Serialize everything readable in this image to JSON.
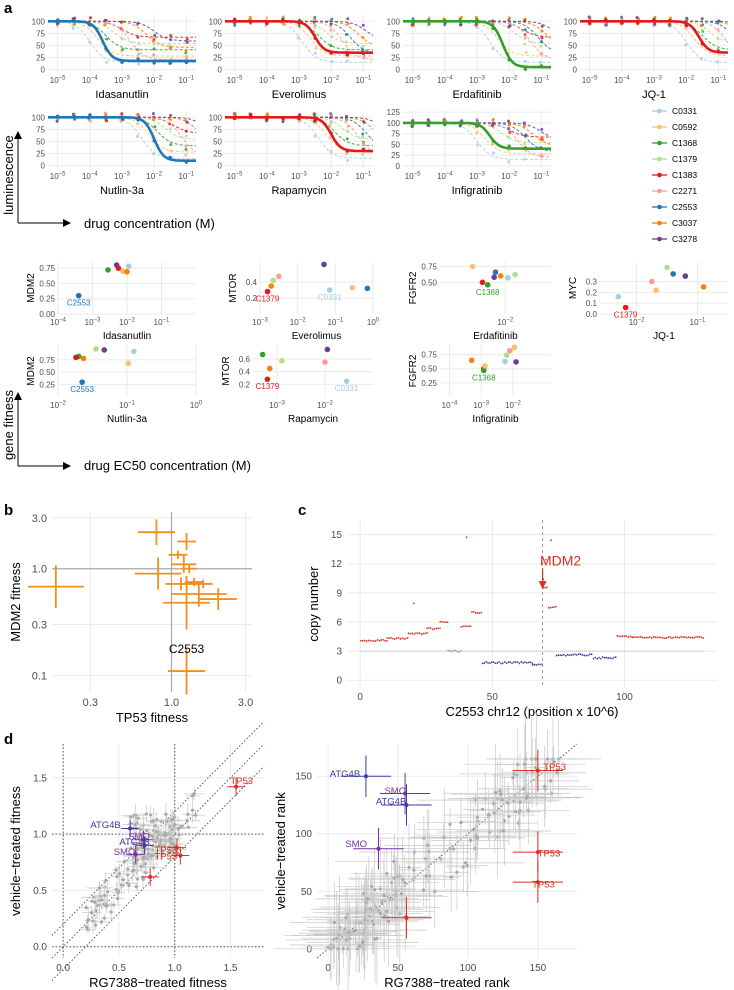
{
  "panel_labels": {
    "a": "a",
    "b": "b",
    "c": "c",
    "d": "d"
  },
  "colors": {
    "C0331": "#a6cee3",
    "C0592": "#fdbf6f",
    "C1368": "#33a02c",
    "C1379": "#b2df8a",
    "C1383": "#e31a1c",
    "C2271": "#fb9a99",
    "C2553": "#1f78b4",
    "C3037": "#ff7f00",
    "C3278": "#6a3d9a",
    "grid": "#ebebeb",
    "axis": "#4d4d4d",
    "orange": "#f28e1c",
    "grey": "#bdbdbd",
    "blue": "#3a3a9f",
    "purple": "#7b2fa3",
    "red": "#d7301f"
  },
  "legend": {
    "entries": [
      "C0331",
      "C0592",
      "C1368",
      "C1379",
      "C1383",
      "C2271",
      "C2553",
      "C3037",
      "C3278"
    ]
  },
  "panel_a": {
    "y_axis_label_top": "luminescence",
    "x_axis_label_top": "drug concentration (M)",
    "y_axis_label_bottom": "gene fitness",
    "x_axis_label_bottom": "drug EC50 concentration (M)",
    "dose_x_ticks": [
      "10^-5",
      "10^-4",
      "10^-3",
      "10^-2",
      "10^-1"
    ],
    "dose_panels": [
      {
        "drug": "Idasanutlin",
        "y_ticks": [
          "0",
          "25",
          "50",
          "75",
          "100"
        ],
        "ymax": 110,
        "highlight": "C2553",
        "ec50_log": -3.6,
        "bottom": 18
      },
      {
        "drug": "Everolimus",
        "y_ticks": [
          "0",
          "25",
          "50",
          "75",
          "100"
        ],
        "ymax": 110,
        "highlight": "C1383",
        "ec50_log": -2.5,
        "bottom": 35
      },
      {
        "drug": "Erdafitinib",
        "y_ticks": [
          "0",
          "25",
          "50",
          "75",
          "100"
        ],
        "ymax": 110,
        "highlight": "C1368",
        "ec50_log": -2.2,
        "bottom": 5
      },
      {
        "drug": "JQ-1",
        "y_ticks": [
          "0",
          "25",
          "50",
          "75",
          "100"
        ],
        "ymax": 110,
        "highlight": "C1383",
        "ec50_log": -1.6,
        "bottom": 35
      },
      {
        "drug": "Nutlin-3a",
        "y_ticks": [
          "0",
          "25",
          "50",
          "75",
          "100"
        ],
        "ymax": 110,
        "highlight": "C2553",
        "ec50_log": -2.0,
        "bottom": 10
      },
      {
        "drug": "Rapamycin",
        "y_ticks": [
          "0",
          "25",
          "50",
          "75",
          "100"
        ],
        "ymax": 110,
        "highlight": "C1383",
        "ec50_log": -2.0,
        "bottom": 30
      },
      {
        "drug": "Infigratinib",
        "y_ticks": [
          "0",
          "25",
          "50",
          "75",
          "100",
          "125"
        ],
        "ymax": 125,
        "highlight": "C1368",
        "ec50_log": -2.6,
        "bottom": 40
      }
    ],
    "ec50_panels": [
      {
        "drug": "Idasanutlin",
        "gene": "MDM2",
        "xmin": -4,
        "xmax": 0,
        "ymax": 0.85,
        "x_ticks": [
          "10^-4",
          "10^-3",
          "10^-2",
          "10^-1"
        ],
        "y_ticks": [
          "0.00",
          "0.25",
          "0.50",
          "0.75"
        ],
        "label": "C2553",
        "label_color": "C2553",
        "points": [
          {
            "c": "C2553",
            "x": -3.4,
            "y": 0.3
          },
          {
            "c": "C1368",
            "x": -2.55,
            "y": 0.72
          },
          {
            "c": "C3278",
            "x": -2.3,
            "y": 0.8
          },
          {
            "c": "C1383",
            "x": -2.25,
            "y": 0.75
          },
          {
            "c": "C0592",
            "x": -2.12,
            "y": 0.7
          },
          {
            "c": "C3037",
            "x": -2.0,
            "y": 0.69
          },
          {
            "c": "C0331",
            "x": -1.95,
            "y": 0.78
          }
        ]
      },
      {
        "drug": "Everolimus",
        "gene": "MTOR",
        "xmin": -3,
        "xmax": 0,
        "ymax": 0.65,
        "x_ticks": [
          "10^-3",
          "10^-2",
          "10^-1",
          "10^0"
        ],
        "y_ticks": [
          "0.2",
          "0.4"
        ],
        "label": "C1379",
        "label_color": "C1383",
        "label2": "C0331",
        "label2_color": "C0331",
        "points": [
          {
            "c": "C1383",
            "x": -2.8,
            "y": 0.28
          },
          {
            "c": "C3037",
            "x": -2.7,
            "y": 0.35
          },
          {
            "c": "C1379",
            "x": -2.65,
            "y": 0.42
          },
          {
            "c": "C2271",
            "x": -2.5,
            "y": 0.47
          },
          {
            "c": "C3278",
            "x": -1.3,
            "y": 0.62
          },
          {
            "c": "C0331",
            "x": -1.15,
            "y": 0.3
          },
          {
            "c": "C0592",
            "x": -0.55,
            "y": 0.33
          },
          {
            "c": "C2553",
            "x": -0.15,
            "y": 0.32
          }
        ]
      },
      {
        "drug": "Erdafitinib",
        "gene": "FGFR2",
        "xmin": -3,
        "xmax": -1.3,
        "ymax": 0.82,
        "x_ticks": [
          "10^-2"
        ],
        "y_ticks": [
          "0.50",
          "0.75"
        ],
        "label": "C1368",
        "label_color": "C1368",
        "points": [
          {
            "c": "C0592",
            "x": -2.5,
            "y": 0.75
          },
          {
            "c": "C1383",
            "x": -2.35,
            "y": 0.5
          },
          {
            "c": "C1368",
            "x": -2.27,
            "y": 0.46
          },
          {
            "c": "C3278",
            "x": -2.17,
            "y": 0.58
          },
          {
            "c": "C2553",
            "x": -2.15,
            "y": 0.66
          },
          {
            "c": "C3037",
            "x": -2.07,
            "y": 0.6
          },
          {
            "c": "C0331",
            "x": -1.96,
            "y": 0.57
          },
          {
            "c": "C1379",
            "x": -1.85,
            "y": 0.62
          }
        ]
      },
      {
        "drug": "JQ-1",
        "gene": "MYC",
        "xmin": -2.6,
        "xmax": -0.5,
        "ymax": 0.48,
        "x_ticks": [
          "10^-2",
          "10^-1"
        ],
        "y_ticks": [
          "0.0",
          "0.1",
          "0.2",
          "0.3"
        ],
        "label": "C1379",
        "label_color": "C1383",
        "points": [
          {
            "c": "C0331",
            "x": -2.3,
            "y": 0.16
          },
          {
            "c": "C1383",
            "x": -2.18,
            "y": 0.06
          },
          {
            "c": "C2271",
            "x": -1.75,
            "y": 0.3
          },
          {
            "c": "C0592",
            "x": -1.68,
            "y": 0.22
          },
          {
            "c": "C1379",
            "x": -1.5,
            "y": 0.43
          },
          {
            "c": "C2553",
            "x": -1.4,
            "y": 0.37
          },
          {
            "c": "C3278",
            "x": -1.2,
            "y": 0.35
          },
          {
            "c": "C3037",
            "x": -0.9,
            "y": 0.25
          }
        ]
      },
      {
        "drug": "Nutlin-3a",
        "gene": "MDM2",
        "xmin": -2,
        "xmax": 0,
        "ymax": 1.05,
        "x_ticks": [
          "10^-2",
          "10^-1",
          "10^0"
        ],
        "y_ticks": [
          "0.25",
          "0.50",
          "0.75"
        ],
        "label": "C2553",
        "label_color": "C2553",
        "points": [
          {
            "c": "C2553",
            "x": -1.65,
            "y": 0.3
          },
          {
            "c": "C1368",
            "x": -1.7,
            "y": 0.82
          },
          {
            "c": "C1383",
            "x": -1.74,
            "y": 0.8
          },
          {
            "c": "C3037",
            "x": -1.63,
            "y": 0.78
          },
          {
            "c": "C1379",
            "x": -1.45,
            "y": 0.97
          },
          {
            "c": "C3278",
            "x": -1.33,
            "y": 0.95
          },
          {
            "c": "C0331",
            "x": -0.9,
            "y": 0.92
          },
          {
            "c": "C0592",
            "x": -0.98,
            "y": 0.68
          }
        ]
      },
      {
        "drug": "Rapamycin",
        "gene": "MTOR",
        "xmin": -3.5,
        "xmax": -1,
        "ymax": 0.82,
        "x_ticks": [
          "10^-3",
          "10^-2"
        ],
        "y_ticks": [
          "0.2",
          "0.4",
          "0.6"
        ],
        "label": "C1379",
        "label_color": "C1383",
        "label2": "C0331",
        "label2_color": "C0331",
        "points": [
          {
            "c": "C1368",
            "x": -3.3,
            "y": 0.67
          },
          {
            "c": "C1383",
            "x": -3.2,
            "y": 0.28
          },
          {
            "c": "C3037",
            "x": -3.15,
            "y": 0.45
          },
          {
            "c": "C1379",
            "x": -2.9,
            "y": 0.57
          },
          {
            "c": "C2271",
            "x": -2.0,
            "y": 0.55
          },
          {
            "c": "C3278",
            "x": -1.95,
            "y": 0.75
          },
          {
            "c": "C0331",
            "x": -1.55,
            "y": 0.25
          }
        ]
      },
      {
        "drug": "Infigratinib",
        "gene": "FGFR2",
        "xmin": -4.3,
        "xmax": -0.8,
        "ymax": 0.92,
        "x_ticks": [
          "10^-4",
          "10^-3",
          "10^-2"
        ],
        "y_ticks": [
          "0.25",
          "0.50",
          "0.75"
        ],
        "label": "C1368",
        "label_color": "C1368",
        "points": [
          {
            "c": "C3037",
            "x": -3.3,
            "y": 0.65
          },
          {
            "c": "C1383",
            "x": -2.92,
            "y": 0.5
          },
          {
            "c": "C1368",
            "x": -2.92,
            "y": 0.47
          },
          {
            "c": "C0592",
            "x": -2.88,
            "y": 0.55
          },
          {
            "c": "C1379",
            "x": -2.2,
            "y": 0.74
          },
          {
            "c": "C2271",
            "x": -2.1,
            "y": 0.82
          },
          {
            "c": "C0592",
            "x": -1.95,
            "y": 0.88
          },
          {
            "c": "C3278",
            "x": -1.9,
            "y": 0.62
          },
          {
            "c": "C0331",
            "x": -2.25,
            "y": 0.63
          }
        ]
      }
    ]
  },
  "panel_b": {
    "xlabel": "TP53 fitness",
    "ylabel": "MDM2 fitness",
    "x_ticks": [
      "0.3",
      "1.0",
      "3.0"
    ],
    "y_ticks": [
      "0.1",
      "0.3",
      "1.0",
      "3.0"
    ],
    "label": "C2553",
    "points": [
      {
        "x": 0.8,
        "y": 2.2,
        "xe": 0.12,
        "ye": 0.12
      },
      {
        "x": 1.25,
        "y": 1.8,
        "xe": 0.06,
        "ye": 0.08
      },
      {
        "x": 0.18,
        "y": 0.68,
        "xe": 0.18,
        "ye": 0.2
      },
      {
        "x": 0.82,
        "y": 0.9,
        "xe": 0.15,
        "ye": 0.15
      },
      {
        "x": 1.2,
        "y": 1.1,
        "xe": 0.08,
        "ye": 0.08
      },
      {
        "x": 1.1,
        "y": 1.35,
        "xe": 0.06,
        "ye": 0.04
      },
      {
        "x": 1.3,
        "y": 1.0,
        "xe": 0.05,
        "ye": 0.04
      },
      {
        "x": 1.15,
        "y": 0.72,
        "xe": 0.1,
        "ye": 0.06
      },
      {
        "x": 1.4,
        "y": 0.75,
        "xe": 0.06,
        "ye": 0.04
      },
      {
        "x": 1.6,
        "y": 0.72,
        "xe": 0.06,
        "ye": 0.04
      },
      {
        "x": 1.5,
        "y": 0.58,
        "xe": 0.18,
        "ye": 0.12
      },
      {
        "x": 2.0,
        "y": 0.52,
        "xe": 0.12,
        "ye": 0.1
      },
      {
        "x": 1.25,
        "y": 0.48,
        "xe": 0.15,
        "ye": 0.25
      },
      {
        "x": 1.25,
        "y": 0.11,
        "xe": 0.12,
        "ye": 0.22
      }
    ]
  },
  "panel_c": {
    "xlabel": "C2553 chr12 (position x 10^6)",
    "ylabel": "copy number",
    "x_ticks": [
      "0",
      "50",
      "100"
    ],
    "y_ticks": [
      "0",
      "3",
      "6",
      "9",
      "12",
      "15"
    ],
    "xlim": [
      -5,
      135
    ],
    "ylim": [
      -0.8,
      16.5
    ],
    "annotation": "MDM2",
    "mdm2_pos": 69,
    "segments": [
      {
        "x0": 0,
        "x1": 10,
        "y": 4.1,
        "c": "red"
      },
      {
        "x0": 10,
        "x1": 18,
        "y": 4.3,
        "c": "red"
      },
      {
        "x0": 18,
        "x1": 25,
        "y": 4.8,
        "c": "red"
      },
      {
        "x0": 25,
        "x1": 30,
        "y": 5.3,
        "c": "red"
      },
      {
        "x0": 30,
        "x1": 33,
        "y": 6.0,
        "c": "red"
      },
      {
        "x0": 33,
        "x1": 38,
        "y": 3.0,
        "c": "grey"
      },
      {
        "x0": 38,
        "x1": 42,
        "y": 5.5,
        "c": "red"
      },
      {
        "x0": 42,
        "x1": 46,
        "y": 7.0,
        "c": "red"
      },
      {
        "x0": 46,
        "x1": 65,
        "y": 1.8,
        "c": "blue"
      },
      {
        "x0": 65,
        "x1": 69,
        "y": 1.6,
        "c": "blue"
      },
      {
        "x0": 69,
        "x1": 71,
        "y": 9.5,
        "c": "red"
      },
      {
        "x0": 71,
        "x1": 74,
        "y": 7.5,
        "c": "red"
      },
      {
        "x0": 74,
        "x1": 88,
        "y": 2.6,
        "c": "blue"
      },
      {
        "x0": 88,
        "x1": 97,
        "y": 2.3,
        "c": "blue"
      },
      {
        "x0": 97,
        "x1": 103,
        "y": 4.5,
        "c": "red"
      },
      {
        "x0": 103,
        "x1": 130,
        "y": 4.4,
        "c": "red"
      }
    ]
  },
  "panel_d_left": {
    "xlabel": "RG7388−treated fitness",
    "ylabel": "vehicle−treated fitness",
    "x_ticks": [
      "0.0",
      "0.5",
      "1.0",
      "1.5"
    ],
    "y_ticks": [
      "0.0",
      "0.5",
      "1.0",
      "1.5"
    ],
    "labels": [
      {
        "t": "TP53",
        "x": 1.6,
        "y": 1.47,
        "c": "red"
      },
      {
        "t": "TP53",
        "x": 0.92,
        "y": 0.86,
        "c": "red"
      },
      {
        "t": "TP53",
        "x": 0.92,
        "y": 0.8,
        "c": "red"
      },
      {
        "t": "ATG4B",
        "x": 0.38,
        "y": 1.08,
        "c": "blue"
      },
      {
        "t": "SMO",
        "x": 0.68,
        "y": 0.98,
        "c": "purple"
      },
      {
        "t": "ATG4B",
        "x": 0.64,
        "y": 0.93,
        "c": "blue"
      },
      {
        "t": "SMO",
        "x": 0.55,
        "y": 0.84,
        "c": "purple"
      }
    ],
    "points": [
      {
        "x": 0.6,
        "y": 1.05,
        "c": "blue"
      },
      {
        "x": 0.72,
        "y": 0.95,
        "c": "purple"
      },
      {
        "x": 0.65,
        "y": 0.82,
        "c": "purple"
      },
      {
        "x": 0.73,
        "y": 0.9,
        "c": "blue"
      },
      {
        "x": 1.02,
        "y": 0.88,
        "c": "red"
      },
      {
        "x": 1.05,
        "y": 0.81,
        "c": "red"
      },
      {
        "x": 0.78,
        "y": 0.62,
        "c": "red"
      },
      {
        "x": 1.55,
        "y": 1.42,
        "c": "red"
      }
    ]
  },
  "panel_d_right": {
    "xlabel": "RG7388−treated rank",
    "ylabel": "vehicle−treated rank",
    "x_ticks": [
      "0",
      "50",
      "100",
      "150"
    ],
    "y_ticks": [
      "0",
      "50",
      "100",
      "150"
    ],
    "labels": [
      {
        "t": "TP53",
        "x": 162,
        "y": 158,
        "c": "red"
      },
      {
        "t": "ATG4B",
        "x": 12,
        "y": 152,
        "c": "blue"
      },
      {
        "t": "SMO",
        "x": 48,
        "y": 137,
        "c": "purple"
      },
      {
        "t": "ATG4B",
        "x": 45,
        "y": 128,
        "c": "blue"
      },
      {
        "t": "SMO",
        "x": 20,
        "y": 91,
        "c": "purple"
      },
      {
        "t": "TP53",
        "x": 158,
        "y": 83,
        "c": "red"
      },
      {
        "t": "TP53",
        "x": 154,
        "y": 56,
        "c": "red"
      }
    ],
    "points": [
      {
        "x": 27,
        "y": 150,
        "c": "blue"
      },
      {
        "x": 55,
        "y": 135,
        "c": "purple"
      },
      {
        "x": 56,
        "y": 125,
        "c": "blue"
      },
      {
        "x": 36,
        "y": 87,
        "c": "purple"
      },
      {
        "x": 150,
        "y": 155,
        "c": "red"
      },
      {
        "x": 150,
        "y": 84,
        "c": "red"
      },
      {
        "x": 150,
        "y": 58,
        "c": "red"
      },
      {
        "x": 56,
        "y": 27,
        "c": "red"
      }
    ]
  }
}
